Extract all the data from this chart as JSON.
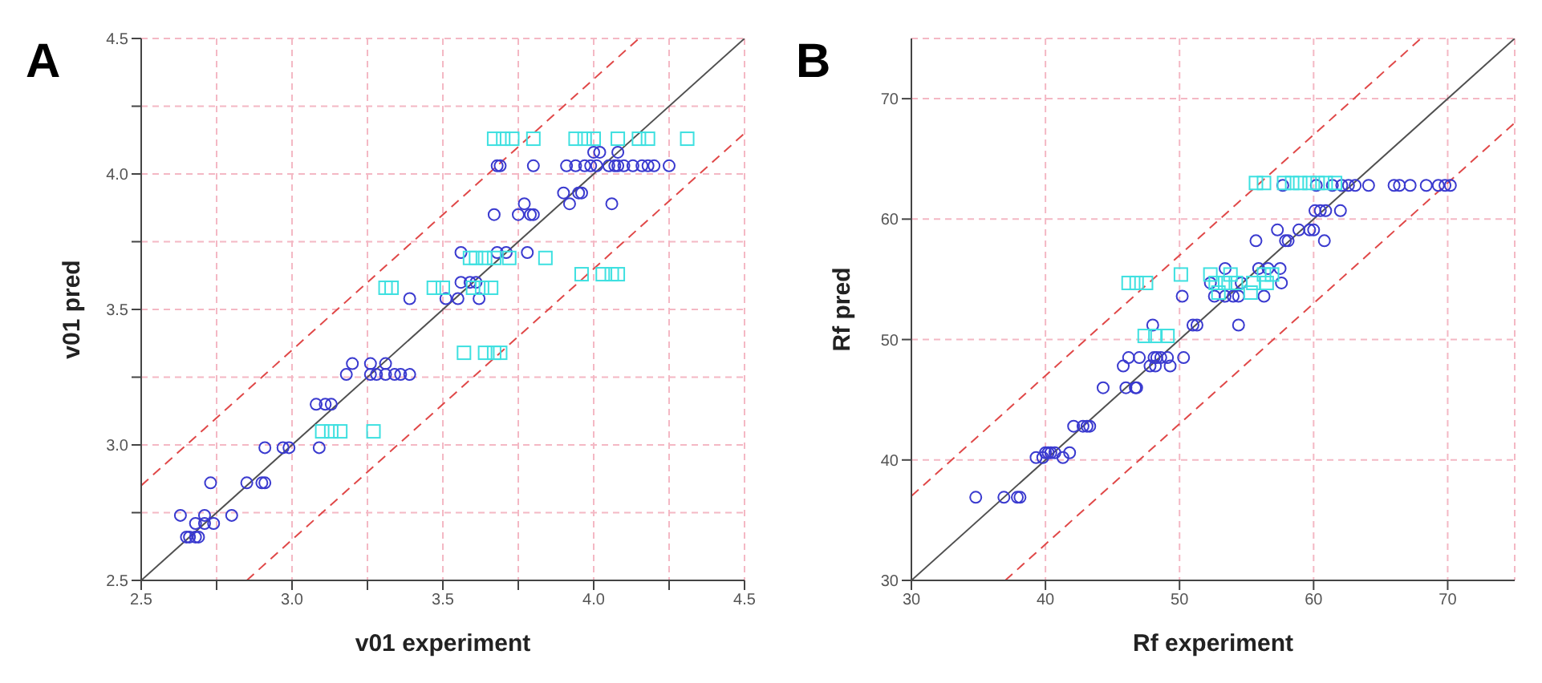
{
  "chart_data": [
    {
      "type": "scatter",
      "title": "A",
      "xlabel": "v01 experiment",
      "ylabel": "v01 pred",
      "xlim": [
        2.5,
        4.5
      ],
      "ylim": [
        2.5,
        4.5
      ],
      "xticks": [
        2.5,
        {
          "value": 2.75,
          "label": null
        },
        "3.0",
        {
          "value": 3.25,
          "label": null
        },
        3.5,
        {
          "value": 3.75,
          "label": null
        },
        "4.0",
        {
          "value": 4.25,
          "label": null
        },
        4.5
      ],
      "yticks": [
        2.5,
        {
          "value": 2.75,
          "label": null
        },
        "3.0",
        {
          "value": 3.25,
          "label": null
        },
        3.5,
        {
          "value": 3.75,
          "label": null
        },
        "4.0",
        {
          "value": 4.25,
          "label": null
        },
        4.5
      ],
      "grid": true,
      "series": [
        {
          "color": "#3a3acf",
          "marker": "circle",
          "x": [
            4.0,
            4.02,
            4.08,
            3.68,
            3.69,
            3.8,
            3.91,
            3.94,
            3.97,
            3.99,
            4.01,
            4.05,
            4.07,
            4.08,
            4.1,
            4.13,
            4.16,
            4.18,
            4.2,
            4.25,
            3.9,
            3.95,
            3.96,
            3.77,
            3.92,
            4.06,
            3.67,
            3.75,
            3.79,
            3.8,
            3.56,
            3.68,
            3.71,
            3.78,
            3.56,
            3.59,
            3.61,
            3.39,
            3.51,
            3.55,
            3.62,
            3.2,
            3.26,
            3.31,
            3.18,
            3.26,
            3.28,
            3.31,
            3.34,
            3.36,
            3.39,
            3.08,
            3.11,
            3.13,
            2.91,
            2.97,
            2.99,
            3.09,
            2.73,
            2.85,
            2.9,
            2.91,
            2.63,
            2.71,
            2.8,
            2.68,
            2.71,
            2.74,
            2.65,
            2.66,
            2.68,
            2.69
          ],
          "values": [
            4.08,
            4.08,
            4.08,
            4.03,
            4.03,
            4.03,
            4.03,
            4.03,
            4.03,
            4.03,
            4.03,
            4.03,
            4.03,
            4.03,
            4.03,
            4.03,
            4.03,
            4.03,
            4.03,
            4.03,
            3.93,
            3.93,
            3.93,
            3.89,
            3.89,
            3.89,
            3.85,
            3.85,
            3.85,
            3.85,
            3.71,
            3.71,
            3.71,
            3.71,
            3.6,
            3.6,
            3.6,
            3.54,
            3.54,
            3.54,
            3.54,
            3.3,
            3.3,
            3.3,
            3.26,
            3.26,
            3.26,
            3.26,
            3.26,
            3.26,
            3.26,
            3.15,
            3.15,
            3.15,
            2.99,
            2.99,
            2.99,
            2.99,
            2.86,
            2.86,
            2.86,
            2.86,
            2.74,
            2.74,
            2.74,
            2.71,
            2.71,
            2.71,
            2.66,
            2.66,
            2.66,
            2.66
          ]
        },
        {
          "color": "#3ee0e0",
          "marker": "square",
          "x": [
            3.67,
            3.7,
            3.73,
            3.8,
            3.94,
            3.97,
            4.0,
            4.08,
            4.15,
            4.18,
            4.31,
            3.59,
            3.61,
            3.64,
            3.67,
            3.72,
            3.84,
            3.96,
            4.03,
            4.06,
            4.08,
            3.31,
            3.33,
            3.47,
            3.5,
            3.6,
            3.63,
            3.66,
            3.57,
            3.64,
            3.67,
            3.69,
            3.1,
            3.13,
            3.16,
            3.27
          ],
          "values": [
            4.13,
            4.13,
            4.13,
            4.13,
            4.13,
            4.13,
            4.13,
            4.13,
            4.13,
            4.13,
            4.13,
            3.69,
            3.69,
            3.69,
            3.69,
            3.69,
            3.69,
            3.63,
            3.63,
            3.63,
            3.63,
            3.58,
            3.58,
            3.58,
            3.58,
            3.58,
            3.58,
            3.58,
            3.34,
            3.34,
            3.34,
            3.34,
            3.05,
            3.05,
            3.05,
            3.05
          ]
        },
        {
          "type": "line",
          "color": "#505050",
          "line_style": "solid",
          "x": [
            2.5,
            4.5
          ],
          "values": [
            2.5,
            4.5
          ]
        },
        {
          "type": "line",
          "color": "#e04848",
          "line_style": "dashed",
          "x": [
            2.5,
            4.15
          ],
          "values": [
            2.85,
            4.5
          ]
        },
        {
          "type": "line",
          "color": "#e04848",
          "line_style": "dashed",
          "x": [
            2.85,
            4.5
          ],
          "values": [
            2.5,
            4.15
          ]
        }
      ]
    },
    {
      "type": "scatter",
      "title": "B",
      "xlabel": "Rf experiment",
      "ylabel": "Rf pred",
      "xlim": [
        30,
        75
      ],
      "ylim": [
        30,
        75
      ],
      "xticks": [
        30,
        40,
        50,
        60,
        70
      ],
      "yticks": [
        30,
        40,
        50,
        60,
        70
      ],
      "grid": true,
      "series": [
        {
          "color": "#3a3acf",
          "marker": "circle",
          "x": [
            57.7,
            60.2,
            61.4,
            62.1,
            62.6,
            63.1,
            64.1,
            66.0,
            66.4,
            67.2,
            68.4,
            69.3,
            69.8,
            70.2,
            60.1,
            60.5,
            60.9,
            62.0,
            57.3,
            58.9,
            59.7,
            60.0,
            55.7,
            57.9,
            58.1,
            60.8,
            53.4,
            55.9,
            56.6,
            57.5,
            52.3,
            54.6,
            57.6,
            50.2,
            52.6,
            53.4,
            54.0,
            54.4,
            56.3,
            48.0,
            51.0,
            51.3,
            54.4,
            46.2,
            47.0,
            48.1,
            48.3,
            48.6,
            49.1,
            50.3,
            45.8,
            47.8,
            48.2,
            49.3,
            44.3,
            46.0,
            46.7,
            46.8,
            42.1,
            42.8,
            43.1,
            43.3,
            40.0,
            40.2,
            40.4,
            40.7,
            41.8,
            39.3,
            39.8,
            41.3,
            34.8,
            36.9,
            37.9,
            38.1
          ],
          "values": [
            62.8,
            62.8,
            62.8,
            62.8,
            62.8,
            62.8,
            62.8,
            62.8,
            62.8,
            62.8,
            62.8,
            62.8,
            62.8,
            62.8,
            60.7,
            60.7,
            60.7,
            60.7,
            59.1,
            59.1,
            59.1,
            59.1,
            58.2,
            58.2,
            58.2,
            58.2,
            55.9,
            55.9,
            55.9,
            55.9,
            54.7,
            54.7,
            54.7,
            53.6,
            53.6,
            53.6,
            53.6,
            53.6,
            53.6,
            51.2,
            51.2,
            51.2,
            51.2,
            48.5,
            48.5,
            48.5,
            48.5,
            48.5,
            48.5,
            48.5,
            47.8,
            47.8,
            47.8,
            47.8,
            46.0,
            46.0,
            46.0,
            46.0,
            42.8,
            42.8,
            42.8,
            42.8,
            40.6,
            40.6,
            40.6,
            40.6,
            40.6,
            40.2,
            40.2,
            40.2,
            36.9,
            36.9,
            36.9,
            36.9
          ]
        },
        {
          "color": "#3ee0e0",
          "marker": "square",
          "x": [
            55.7,
            56.3,
            57.8,
            58.4,
            59.0,
            59.7,
            60.3,
            60.9,
            61.6,
            50.1,
            52.3,
            53.8,
            56.3,
            56.9,
            46.2,
            46.8,
            47.5,
            52.7,
            53.4,
            54.2,
            55.5,
            56.5,
            52.9,
            55.3,
            47.4,
            48.2,
            49.1
          ],
          "values": [
            63.0,
            63.0,
            63.0,
            63.0,
            63.0,
            63.0,
            63.0,
            63.0,
            63.0,
            55.4,
            55.4,
            55.4,
            55.4,
            55.4,
            54.7,
            54.7,
            54.7,
            54.7,
            54.7,
            54.7,
            54.7,
            54.7,
            53.9,
            53.9,
            50.3,
            50.3,
            50.3
          ]
        },
        {
          "type": "line",
          "color": "#505050",
          "line_style": "solid",
          "x": [
            30,
            75
          ],
          "values": [
            30,
            75
          ]
        },
        {
          "type": "line",
          "color": "#e04848",
          "line_style": "dashed",
          "x": [
            30,
            68
          ],
          "values": [
            37,
            75
          ]
        },
        {
          "type": "line",
          "color": "#e04848",
          "line_style": "dashed",
          "x": [
            37,
            75
          ],
          "values": [
            30,
            68
          ]
        }
      ]
    }
  ]
}
